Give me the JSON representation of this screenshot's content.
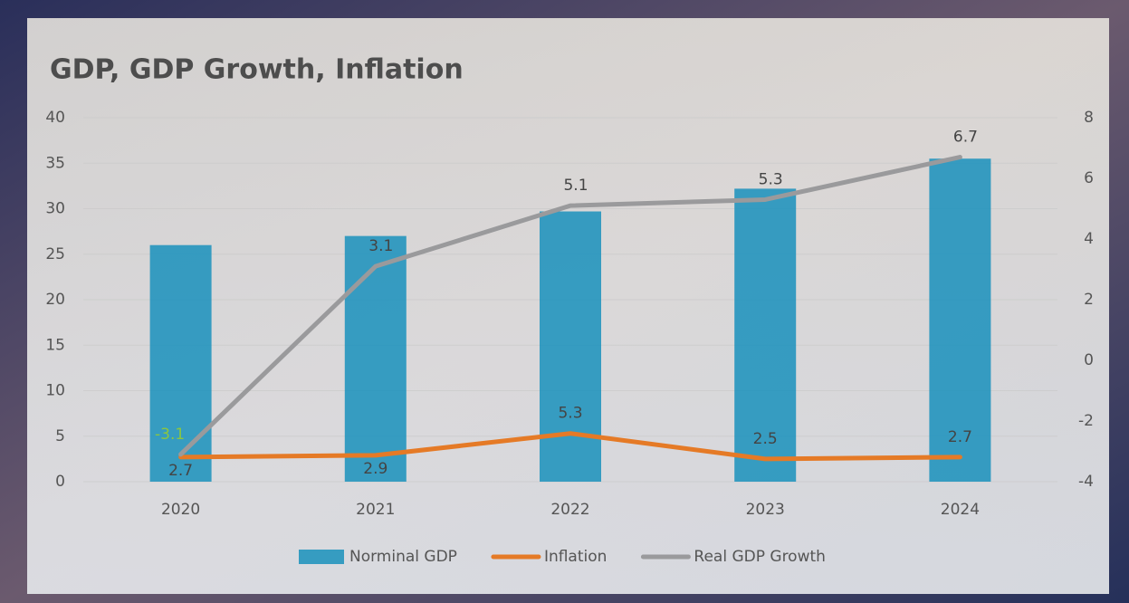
{
  "chart_data": {
    "type": "bar-line",
    "title": "GDP, GDP Growth, Inflation",
    "categories": [
      "2020",
      "2021",
      "2022",
      "2023",
      "2024"
    ],
    "series": [
      {
        "name": "Norminal GDP",
        "type": "bar",
        "color": "#1f93bd",
        "values": [
          26,
          27,
          29.7,
          32.2,
          35.5
        ]
      },
      {
        "name": "Inflation",
        "type": "line",
        "color": "#e57a26",
        "values": [
          2.7,
          2.9,
          5.3,
          2.5,
          2.7
        ],
        "data_labels": true
      },
      {
        "name": "Real GDP Growth",
        "type": "line",
        "axis": "y2",
        "color": "#9a9a9c",
        "values": [
          -3.1,
          3.1,
          5.1,
          5.3,
          6.7
        ],
        "data_labels": true
      }
    ],
    "ylim": [
      0,
      40
    ],
    "yticks": [
      0,
      5,
      10,
      15,
      20,
      25,
      30,
      35,
      40
    ],
    "y2lim": [
      -4,
      8
    ],
    "y2ticks": [
      -4,
      -2,
      0,
      2,
      4,
      6,
      8
    ],
    "grid": true,
    "legend": "bottom"
  }
}
